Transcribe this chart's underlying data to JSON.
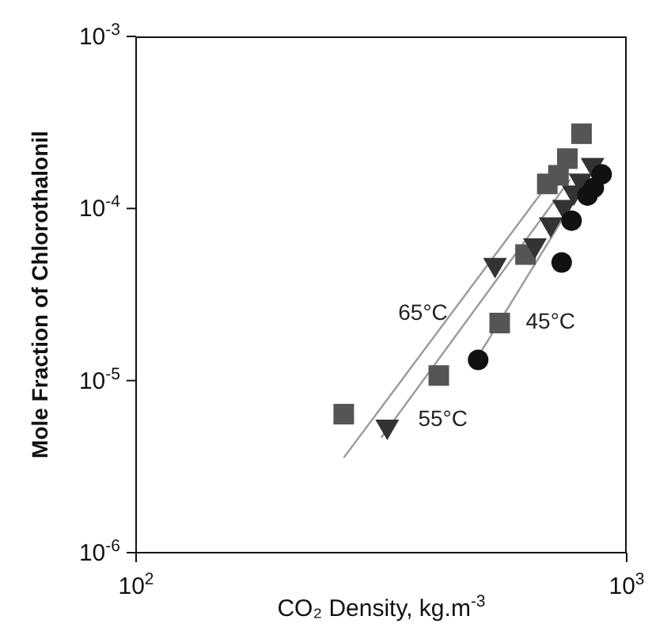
{
  "chart_data": {
    "type": "scatter",
    "xlabel": "CO₂ Density, kg.m$^{-3}$",
    "ylabel": "Mole Fraction of Chlorothalonil",
    "log": "xy",
    "xlim": [
      100,
      1000
    ],
    "xticks": [
      {
        "value": 100,
        "label": "10$^{2}$"
      },
      {
        "value": 1000,
        "label": "10$^{3}$"
      }
    ],
    "ylim": [
      1e-06,
      0.001
    ],
    "yticks": [
      {
        "value": 1e-06,
        "label": "10$^{-6}$"
      },
      {
        "value": 1e-05,
        "label": "10$^{-5}$"
      },
      {
        "value": 0.0001,
        "label": "10$^{-4}$"
      },
      {
        "value": 0.001,
        "label": "10$^{-3}$"
      }
    ],
    "series": [
      {
        "marker": "square",
        "color": "#555555",
        "x": [
          265,
          414,
          551,
          622,
          689,
          726,
          757,
          809
        ],
        "values": [
          6.38e-06,
          1.07e-05,
          2.16e-05,
          5.4e-05,
          0.000139,
          0.000156,
          0.000195,
          0.000272
        ]
      },
      {
        "marker": "triangle",
        "color": "#333333",
        "x": [
          325,
          539,
          650,
          700,
          745,
          780,
          805,
          852
        ],
        "values": [
          5.28e-06,
          4.59e-05,
          5.97e-05,
          7.9e-05,
          9.98e-05,
          0.000121,
          0.000142,
          0.000175
        ]
      },
      {
        "marker": "circle",
        "color": "#111111",
        "x": [
          498,
          737,
          772,
          832,
          857,
          889
        ],
        "values": [
          1.32e-05,
          4.86e-05,
          8.5e-05,
          0.000119,
          0.000132,
          0.000158
        ]
      },
      {
        "type": "line",
        "name": "65°C",
        "color": "#9a9a9a",
        "x": [
          265,
          721
        ],
        "values": [
          3.56e-06,
          0.000163
        ]
      },
      {
        "type": "line",
        "name": "55°C",
        "color": "#9a9a9a",
        "x": [
          316,
          766
        ],
        "values": [
          4.66e-06,
          0.000147
        ]
      },
      {
        "type": "line",
        "name": "45°C",
        "color": "#9a9a9a",
        "x": [
          504,
          805
        ],
        "values": [
          1.46e-05,
          0.000128
        ]
      }
    ]
  }
}
